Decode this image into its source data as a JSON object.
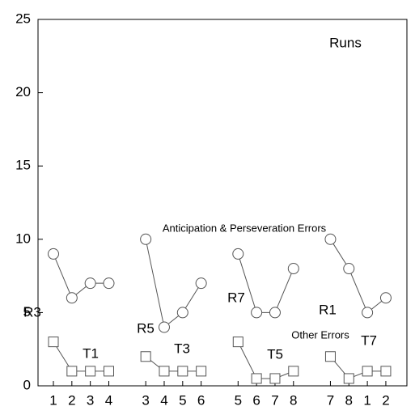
{
  "chart_data": {
    "type": "line",
    "title": "Runs",
    "categories": [
      "1",
      "2",
      "3",
      "4",
      null,
      "3",
      "4",
      "5",
      "6",
      null,
      "5",
      "6",
      "7",
      "8",
      null,
      "7",
      "8",
      "1",
      "2"
    ],
    "ylim": [
      0,
      25
    ],
    "yticks": [
      0,
      5,
      10,
      15,
      20,
      25
    ],
    "series": [
      {
        "name": "Anticipation & Perseveration Errors",
        "marker": "circle",
        "color": "#555555",
        "values": [
          9,
          6,
          7,
          7,
          null,
          10,
          4,
          5,
          7,
          null,
          9,
          5,
          5,
          8,
          null,
          10,
          8,
          5,
          6
        ]
      },
      {
        "name": "Other Errors",
        "marker": "square",
        "color": "#555555",
        "values": [
          3,
          1,
          1,
          1,
          null,
          2,
          1,
          1,
          1,
          null,
          3,
          0.5,
          0.5,
          1,
          null,
          2,
          0.5,
          1,
          1
        ]
      }
    ],
    "annotations": [
      "R3",
      "T1",
      "R5",
      "T3",
      "R7",
      "T5",
      "R1",
      "T7"
    ]
  }
}
